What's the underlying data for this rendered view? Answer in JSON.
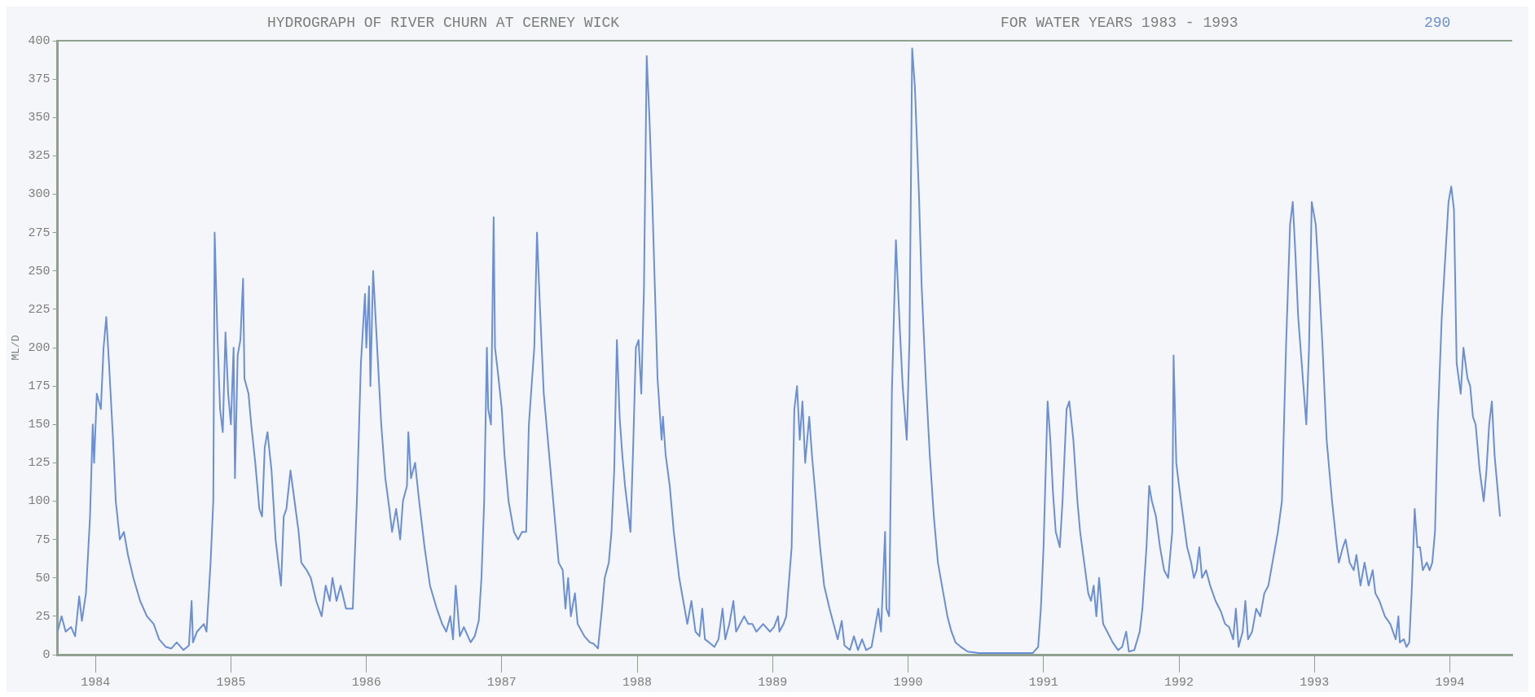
{
  "chart_data": {
    "type": "line",
    "title": "HYDROGRAPH OF RIVER CHURN AT CERNEY WICK",
    "subtitle": "FOR WATER YEARS 1983 - 1993",
    "annotations": [
      "290"
    ],
    "ylabel": "ML/D",
    "xlim": [
      1983.72,
      1994.46
    ],
    "xticks": [
      1984,
      1985,
      1986,
      1987,
      1988,
      1989,
      1990,
      1991,
      1992,
      1993,
      1994
    ],
    "ylim": [
      0,
      400
    ],
    "yticks": [
      0,
      25,
      50,
      75,
      100,
      125,
      150,
      175,
      200,
      225,
      250,
      275,
      300,
      325,
      350,
      375,
      400
    ],
    "series": [
      {
        "color": "#6b8fd4",
        "x": [
          1983.72,
          1983.75,
          1983.78,
          1983.82,
          1983.85,
          1983.88,
          1983.9,
          1983.93,
          1983.96,
          1983.98,
          1983.99,
          1984.01,
          1984.04,
          1984.06,
          1984.08,
          1984.1,
          1984.13,
          1984.15,
          1984.18,
          1984.21,
          1984.24,
          1984.28,
          1984.33,
          1984.38,
          1984.43,
          1984.47,
          1984.52,
          1984.56,
          1984.6,
          1984.65,
          1984.69,
          1984.71,
          1984.72,
          1984.75,
          1984.8,
          1984.82,
          1984.85,
          1984.87,
          1984.88,
          1984.9,
          1984.92,
          1984.94,
          1984.96,
          1984.98,
          1985,
          1985.02,
          1985.03,
          1985.05,
          1985.07,
          1985.09,
          1985.1,
          1985.13,
          1985.15,
          1985.18,
          1985.21,
          1985.23,
          1985.25,
          1985.27,
          1985.3,
          1985.33,
          1985.35,
          1985.37,
          1985.39,
          1985.41,
          1985.44,
          1985.47,
          1985.5,
          1985.52,
          1985.56,
          1985.59,
          1985.63,
          1985.67,
          1985.7,
          1985.73,
          1985.75,
          1985.78,
          1985.81,
          1985.85,
          1985.9,
          1985.93,
          1985.96,
          1985.99,
          1986,
          1986.02,
          1986.03,
          1986.05,
          1986.08,
          1986.11,
          1986.14,
          1986.17,
          1986.19,
          1986.22,
          1986.25,
          1986.27,
          1986.3,
          1986.31,
          1986.33,
          1986.36,
          1986.39,
          1986.43,
          1986.47,
          1986.52,
          1986.56,
          1986.59,
          1986.62,
          1986.64,
          1986.66,
          1986.69,
          1986.72,
          1986.77,
          1986.8,
          1986.83,
          1986.85,
          1986.87,
          1986.89,
          1986.9,
          1986.92,
          1986.94,
          1986.95,
          1986.97,
          1987,
          1987.02,
          1987.05,
          1987.07,
          1987.09,
          1987.12,
          1987.15,
          1987.18,
          1987.2,
          1987.24,
          1987.26,
          1987.28,
          1987.31,
          1987.35,
          1987.39,
          1987.42,
          1987.45,
          1987.47,
          1987.49,
          1987.51,
          1987.54,
          1987.56,
          1987.61,
          1987.65,
          1987.68,
          1987.71,
          1987.74,
          1987.76,
          1987.79,
          1987.81,
          1987.83,
          1987.85,
          1987.87,
          1987.89,
          1987.91,
          1987.95,
          1987.97,
          1987.99,
          1988.01,
          1988.03,
          1988.05,
          1988.07,
          1988.09,
          1988.11,
          1988.13,
          1988.15,
          1988.18,
          1988.19,
          1988.21,
          1988.24,
          1988.27,
          1988.31,
          1988.34,
          1988.37,
          1988.4,
          1988.43,
          1988.46,
          1988.48,
          1988.5,
          1988.53,
          1988.57,
          1988.6,
          1988.63,
          1988.65,
          1988.68,
          1988.71,
          1988.73,
          1988.76,
          1988.79,
          1988.82,
          1988.85,
          1988.88,
          1988.93,
          1988.98,
          1989.01,
          1989.04,
          1989.05,
          1989.08,
          1989.1,
          1989.14,
          1989.16,
          1989.18,
          1989.2,
          1989.22,
          1989.24,
          1989.27,
          1989.29,
          1989.32,
          1989.35,
          1989.38,
          1989.42,
          1989.45,
          1989.48,
          1989.51,
          1989.53,
          1989.57,
          1989.6,
          1989.63,
          1989.66,
          1989.69,
          1989.73,
          1989.76,
          1989.78,
          1989.8,
          1989.83,
          1989.84,
          1989.86,
          1989.88,
          1989.91,
          1989.94,
          1989.96,
          1989.99,
          1990.01,
          1990.03,
          1990.05,
          1990.08,
          1990.1,
          1990.13,
          1990.16,
          1990.19,
          1990.22,
          1990.26,
          1990.29,
          1990.32,
          1990.35,
          1990.39,
          1990.44,
          1990.52,
          1990.63,
          1990.74,
          1990.85,
          1990.92,
          1990.96,
          1990.98,
          1991,
          1991.03,
          1991.05,
          1991.07,
          1991.09,
          1991.12,
          1991.14,
          1991.17,
          1991.19,
          1991.22,
          1991.25,
          1991.27,
          1991.3,
          1991.33,
          1991.35,
          1991.37,
          1991.39,
          1991.41,
          1991.44,
          1991.47,
          1991.51,
          1991.55,
          1991.58,
          1991.61,
          1991.63,
          1991.67,
          1991.71,
          1991.73,
          1991.76,
          1991.78,
          1991.8,
          1991.83,
          1991.86,
          1991.89,
          1991.92,
          1991.95,
          1991.96,
          1991.98,
          1992,
          1992.03,
          1992.06,
          1992.09,
          1992.11,
          1992.13,
          1992.15,
          1992.17,
          1992.2,
          1992.23,
          1992.27,
          1992.31,
          1992.34,
          1992.37,
          1992.4,
          1992.42,
          1992.44,
          1992.47,
          1992.49,
          1992.51,
          1992.54,
          1992.57,
          1992.6,
          1992.63,
          1992.66,
          1992.69,
          1992.73,
          1992.76,
          1992.79,
          1992.82,
          1992.84,
          1992.86,
          1992.88,
          1992.91,
          1992.94,
          1992.96,
          1992.98,
          1993.01,
          1993.03,
          1993.06,
          1993.09,
          1993.13,
          1993.16,
          1993.18,
          1993.21,
          1993.23,
          1993.26,
          1993.29,
          1993.31,
          1993.34,
          1993.37,
          1993.4,
          1993.43,
          1993.45,
          1993.48,
          1993.52,
          1993.56,
          1993.6,
          1993.62,
          1993.63,
          1993.66,
          1993.68,
          1993.7,
          1993.72,
          1993.74,
          1993.76,
          1993.78,
          1993.8,
          1993.83,
          1993.85,
          1993.87,
          1993.89,
          1993.91,
          1993.94,
          1993.96,
          1993.99,
          1994.01,
          1994.03,
          1994.05,
          1994.08,
          1994.1,
          1994.13,
          1994.15,
          1994.17,
          1994.19,
          1994.22,
          1994.25,
          1994.27,
          1994.29,
          1994.31,
          1994.33,
          1994.35,
          1994.37
        ],
        "values": [
          15,
          25,
          15,
          18,
          12,
          38,
          22,
          40,
          90,
          150,
          125,
          170,
          160,
          200,
          220,
          190,
          140,
          100,
          75,
          80,
          65,
          50,
          35,
          25,
          20,
          10,
          5,
          4,
          8,
          3,
          6,
          35,
          8,
          15,
          20,
          15,
          60,
          100,
          275,
          210,
          160,
          145,
          210,
          170,
          150,
          200,
          115,
          195,
          205,
          245,
          180,
          170,
          150,
          125,
          95,
          90,
          135,
          145,
          120,
          75,
          60,
          45,
          90,
          95,
          120,
          100,
          80,
          60,
          55,
          50,
          35,
          25,
          45,
          35,
          50,
          35,
          45,
          30,
          30,
          100,
          190,
          235,
          200,
          240,
          175,
          250,
          200,
          150,
          115,
          95,
          80,
          95,
          75,
          100,
          110,
          145,
          115,
          125,
          100,
          70,
          45,
          30,
          20,
          15,
          25,
          10,
          45,
          12,
          18,
          8,
          12,
          22,
          50,
          100,
          200,
          160,
          150,
          285,
          200,
          185,
          160,
          130,
          100,
          90,
          80,
          75,
          80,
          80,
          150,
          200,
          275,
          230,
          170,
          130,
          90,
          60,
          55,
          30,
          50,
          25,
          40,
          20,
          12,
          8,
          7,
          4,
          30,
          50,
          60,
          80,
          120,
          205,
          155,
          130,
          110,
          80,
          135,
          200,
          205,
          170,
          240,
          390,
          350,
          300,
          240,
          180,
          140,
          155,
          130,
          110,
          80,
          50,
          35,
          20,
          35,
          15,
          12,
          30,
          10,
          8,
          5,
          10,
          30,
          10,
          20,
          35,
          15,
          20,
          25,
          20,
          20,
          15,
          20,
          15,
          18,
          25,
          15,
          20,
          25,
          70,
          160,
          175,
          140,
          165,
          125,
          155,
          130,
          100,
          70,
          45,
          30,
          20,
          10,
          22,
          6,
          3,
          12,
          3,
          10,
          3,
          5,
          20,
          30,
          15,
          80,
          30,
          25,
          170,
          270,
          210,
          175,
          140,
          205,
          395,
          370,
          300,
          240,
          180,
          130,
          90,
          60,
          40,
          25,
          15,
          8,
          5,
          2,
          1,
          1,
          1,
          1,
          1,
          5,
          30,
          70,
          165,
          140,
          105,
          80,
          70,
          100,
          160,
          165,
          140,
          100,
          80,
          60,
          40,
          35,
          45,
          25,
          50,
          20,
          15,
          8,
          3,
          5,
          15,
          2,
          3,
          15,
          30,
          70,
          110,
          100,
          90,
          70,
          55,
          50,
          80,
          195,
          125,
          110,
          90,
          70,
          60,
          50,
          55,
          70,
          50,
          55,
          45,
          35,
          28,
          20,
          18,
          10,
          30,
          5,
          15,
          35,
          10,
          15,
          30,
          25,
          40,
          45,
          60,
          80,
          100,
          200,
          280,
          295,
          260,
          220,
          185,
          150,
          200,
          295,
          280,
          250,
          200,
          140,
          100,
          75,
          60,
          70,
          75,
          60,
          55,
          65,
          45,
          60,
          45,
          55,
          40,
          35,
          25,
          20,
          10,
          25,
          8,
          10,
          5,
          8,
          45,
          95,
          70,
          70,
          55,
          60,
          55,
          60,
          80,
          150,
          220,
          250,
          295,
          305,
          290,
          190,
          170,
          200,
          180,
          175,
          155,
          150,
          120,
          100,
          120,
          150,
          165,
          130,
          110,
          90
        ]
      }
    ]
  }
}
